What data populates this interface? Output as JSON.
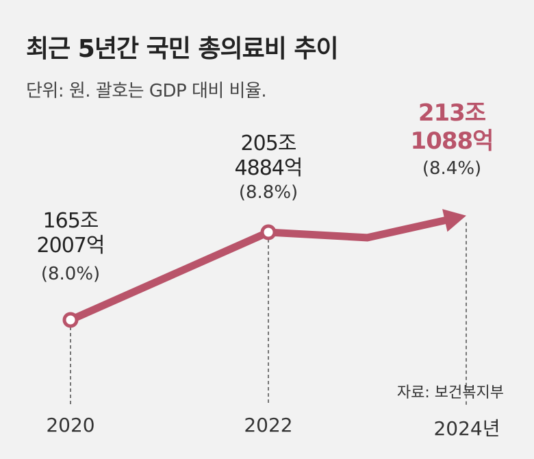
{
  "chart_data": {
    "type": "line",
    "title": "최근 5년간 국민 총의료비 추이",
    "subtitle": "단위: 원. 괄호는 GDP 대비 비율.",
    "source": "자료: 보건복지부",
    "x": [
      2020,
      2022,
      2023,
      2024
    ],
    "values_trillion_won": [
      165.2007,
      205.4884,
      203.0,
      213.1088
    ],
    "tick_labels": [
      "2020",
      "2022",
      "2024년"
    ],
    "point_labels": [
      {
        "year": 2020,
        "line1": "165조",
        "line2": "2007억",
        "pct": "(8.0%)",
        "highlight": false
      },
      {
        "year": 2022,
        "line1": "205조",
        "line2": "4884억",
        "pct": "(8.8%)",
        "highlight": false
      },
      {
        "year": 2024,
        "line1": "213조",
        "line2": "1088억",
        "pct": "(8.4%)",
        "highlight": true
      }
    ],
    "line_color": "#b9546a",
    "highlight_color": "#b9546a",
    "grid": false
  }
}
